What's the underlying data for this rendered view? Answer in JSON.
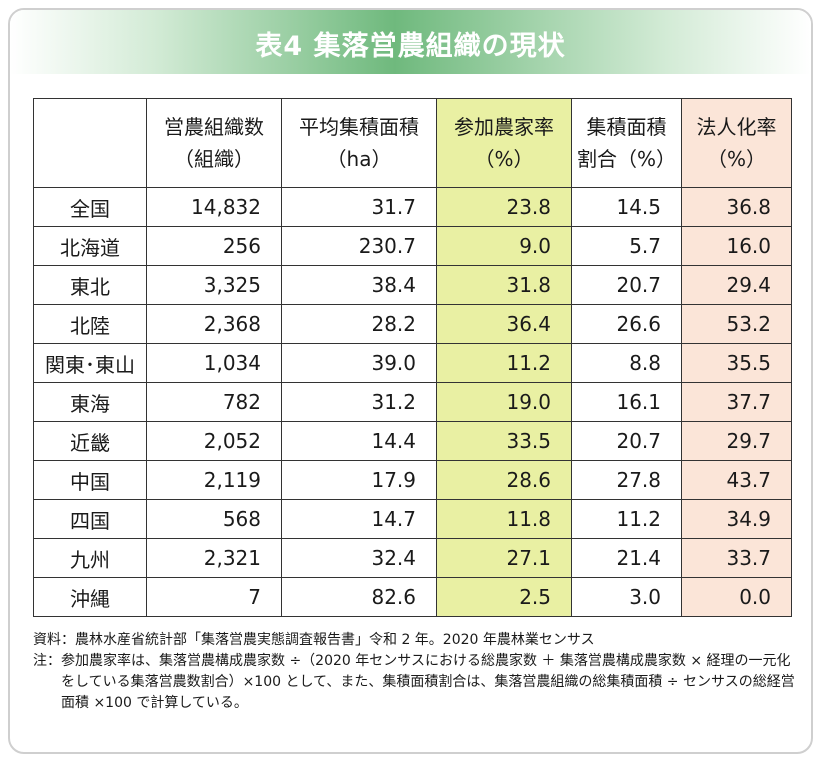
{
  "title": "表4 集落営農組織の現状",
  "table": {
    "headers": [
      {
        "line1": "",
        "line2": ""
      },
      {
        "line1": "営農組織数",
        "line2": "（組織）"
      },
      {
        "line1": "平均集積面積",
        "line2": "（ha）"
      },
      {
        "line1": "参加農家率",
        "line2": "（%）"
      },
      {
        "line1": "集積面積",
        "line2": "割合（%）"
      },
      {
        "line1": "法人化率",
        "line2": "（%）"
      }
    ],
    "rows": [
      {
        "region": "全国",
        "org_count": "14,832",
        "avg_area": "31.7",
        "participation": "23.8",
        "area_share": "14.5",
        "corp_rate": "36.8"
      },
      {
        "region": "北海道",
        "org_count": "256",
        "avg_area": "230.7",
        "participation": "9.0",
        "area_share": "5.7",
        "corp_rate": "16.0"
      },
      {
        "region": "東北",
        "org_count": "3,325",
        "avg_area": "38.4",
        "participation": "31.8",
        "area_share": "20.7",
        "corp_rate": "29.4"
      },
      {
        "region": "北陸",
        "org_count": "2,368",
        "avg_area": "28.2",
        "participation": "36.4",
        "area_share": "26.6",
        "corp_rate": "53.2"
      },
      {
        "region": "関東･東山",
        "org_count": "1,034",
        "avg_area": "39.0",
        "participation": "11.2",
        "area_share": "8.8",
        "corp_rate": "35.5"
      },
      {
        "region": "東海",
        "org_count": "782",
        "avg_area": "31.2",
        "participation": "19.0",
        "area_share": "16.1",
        "corp_rate": "37.7"
      },
      {
        "region": "近畿",
        "org_count": "2,052",
        "avg_area": "14.4",
        "participation": "33.5",
        "area_share": "20.7",
        "corp_rate": "29.7"
      },
      {
        "region": "中国",
        "org_count": "2,119",
        "avg_area": "17.9",
        "participation": "28.6",
        "area_share": "27.8",
        "corp_rate": "43.7"
      },
      {
        "region": "四国",
        "org_count": "568",
        "avg_area": "14.7",
        "participation": "11.8",
        "area_share": "11.2",
        "corp_rate": "34.9"
      },
      {
        "region": "九州",
        "org_count": "2,321",
        "avg_area": "32.4",
        "participation": "27.1",
        "area_share": "21.4",
        "corp_rate": "33.7"
      },
      {
        "region": "沖縄",
        "org_count": "7",
        "avg_area": "82.6",
        "participation": "2.5",
        "area_share": "3.0",
        "corp_rate": "0.0"
      }
    ]
  },
  "notes": {
    "source_label": "資料：",
    "source_text": "農林水産省統計部「集落営農実態調査報告書」令和 2 年。2020 年農林業センサス",
    "note_label": "注：",
    "note_text": "参加農家率は、集落営農構成農家数 ÷（2020 年センサスにおける総農家数 ＋ 集落営農構成農家数 × 経理の一元化をしている集落営農数割合）×100 として、また、集積面積割合は、集落営農組織の総集積面積 ÷ センサスの総経営面積 ×100 で計算している。"
  },
  "colors": {
    "banner_green": "#6fb97d",
    "participation_column": "#e9f0a3",
    "corporatization_column": "#fbe5d8"
  }
}
